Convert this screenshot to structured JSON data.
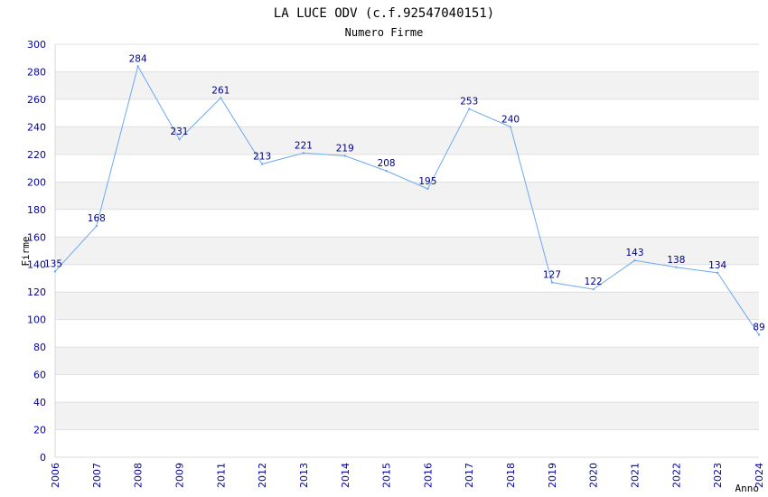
{
  "chart_data": {
    "type": "line",
    "title": "LA LUCE ODV (c.f.92547040151)",
    "subtitle": "Numero Firme",
    "xlabel": "Anno",
    "ylabel": "Firme",
    "x": [
      2006,
      2007,
      2008,
      2009,
      2011,
      2012,
      2013,
      2014,
      2015,
      2016,
      2017,
      2018,
      2019,
      2020,
      2021,
      2022,
      2023,
      2024
    ],
    "series": [
      {
        "values": [
          135,
          168,
          284,
          231,
          261,
          213,
          221,
          219,
          208,
          195,
          253,
          240,
          127,
          122,
          143,
          138,
          134,
          89
        ]
      }
    ],
    "ylim": [
      0,
      300
    ],
    "yticks": [
      0,
      20,
      40,
      60,
      80,
      100,
      120,
      140,
      160,
      180,
      200,
      220,
      240,
      260,
      280,
      300
    ],
    "grid": true,
    "line_color": "#6aaaf0",
    "band_color": "#f2f2f2",
    "grid_color": "#e0e0e0",
    "tick_color": "#0000aa",
    "label_color": "#000080"
  }
}
